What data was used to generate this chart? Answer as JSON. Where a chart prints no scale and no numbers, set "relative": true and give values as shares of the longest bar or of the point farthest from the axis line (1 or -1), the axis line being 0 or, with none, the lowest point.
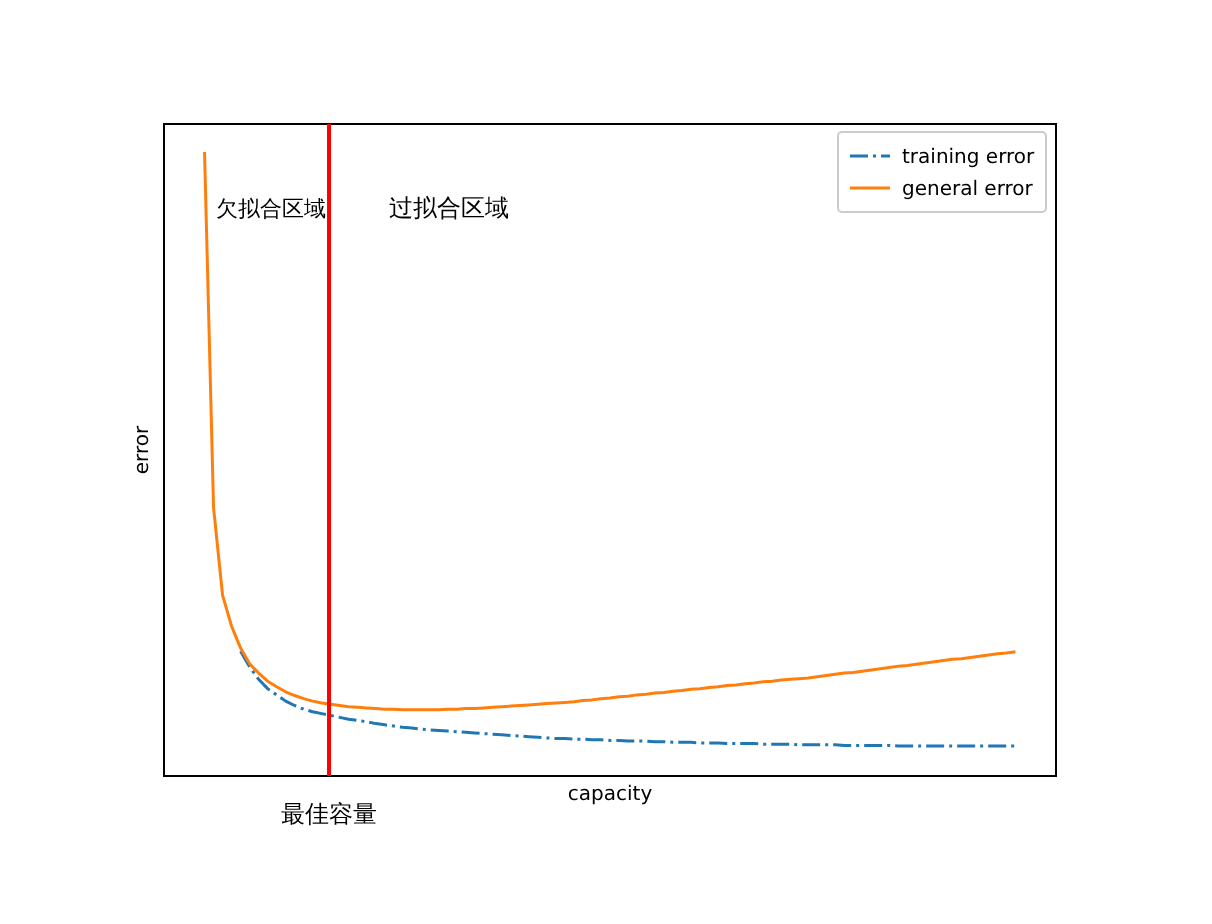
{
  "chart_data": {
    "type": "line",
    "relative": true,
    "xlabel": "capacity",
    "ylabel": "error",
    "legend": "top right",
    "marker": "none",
    "categories": [
      null,
      null,
      null,
      null,
      null,
      null,
      null,
      null,
      null,
      null,
      null,
      null,
      null,
      null,
      null,
      null,
      null,
      null,
      null,
      null,
      null,
      null,
      null,
      null,
      null,
      null,
      null,
      null,
      null,
      null,
      null,
      null,
      null,
      null,
      null,
      null,
      null,
      null,
      null,
      null,
      null,
      null,
      null,
      null,
      null,
      null,
      null,
      null,
      null,
      null,
      null,
      null,
      null,
      null,
      null,
      null,
      null,
      null,
      null,
      null,
      null,
      null,
      null,
      null,
      null,
      null,
      null,
      null,
      null,
      null,
      null,
      null,
      null,
      null,
      null,
      null,
      null,
      null,
      null,
      null,
      null,
      null,
      null,
      null,
      null,
      null,
      null,
      null,
      null,
      null,
      null
    ],
    "series": [
      {
        "name": "training error",
        "color": "#1f77b4",
        "line_style": "dashdot",
        "values": [
          null,
          null,
          null,
          null,
          0.2,
          0.175,
          0.155,
          0.14,
          0.13,
          0.12,
          0.113,
          0.107,
          0.103,
          0.1,
          0.097,
          0.094,
          0.091,
          0.089,
          0.087,
          0.084,
          0.082,
          0.08,
          0.078,
          0.077,
          0.075,
          0.074,
          0.073,
          0.072,
          0.071,
          0.07,
          0.069,
          0.068,
          0.067,
          0.066,
          0.065,
          0.064,
          0.063,
          0.062,
          0.061,
          0.06,
          0.06,
          0.059,
          0.059,
          0.058,
          0.058,
          0.057,
          0.057,
          0.056,
          0.056,
          0.056,
          0.055,
          0.055,
          0.054,
          0.054,
          0.054,
          0.053,
          0.053,
          0.053,
          0.052,
          0.052,
          0.052,
          0.052,
          0.051,
          0.051,
          0.051,
          0.051,
          0.05,
          0.05,
          0.05,
          0.05,
          0.05,
          0.049,
          0.049,
          0.049,
          0.049,
          0.049,
          0.049,
          0.048,
          0.048,
          0.048,
          0.048,
          0.048,
          0.048,
          0.048,
          0.048,
          0.048,
          0.048,
          0.048,
          0.048,
          0.048,
          0.048
        ]
      },
      {
        "name": "general error",
        "color": "#ff7f0e",
        "line_style": "solid",
        "values": [
          1.0,
          0.43,
          0.29,
          0.24,
          0.205,
          0.18,
          0.165,
          0.152,
          0.143,
          0.135,
          0.129,
          0.124,
          0.12,
          0.117,
          0.115,
          0.113,
          0.111,
          0.11,
          0.109,
          0.108,
          0.107,
          0.107,
          0.106,
          0.106,
          0.106,
          0.106,
          0.106,
          0.107,
          0.107,
          0.108,
          0.108,
          0.109,
          0.11,
          0.111,
          0.112,
          0.113,
          0.114,
          0.115,
          0.116,
          0.117,
          0.118,
          0.119,
          0.121,
          0.122,
          0.124,
          0.125,
          0.127,
          0.128,
          0.13,
          0.131,
          0.133,
          0.134,
          0.136,
          0.137,
          0.139,
          0.14,
          0.142,
          0.143,
          0.145,
          0.146,
          0.148,
          0.149,
          0.151,
          0.152,
          0.154,
          0.155,
          0.156,
          0.157,
          0.159,
          0.161,
          0.163,
          0.165,
          0.166,
          0.168,
          0.17,
          0.172,
          0.174,
          0.176,
          0.177,
          0.179,
          0.181,
          0.183,
          0.185,
          0.187,
          0.188,
          0.19,
          0.192,
          0.194,
          0.196,
          0.197,
          0.199
        ]
      }
    ],
    "annotations": [
      "欠拟合区域",
      "过拟合区域",
      "最佳容量"
    ]
  }
}
